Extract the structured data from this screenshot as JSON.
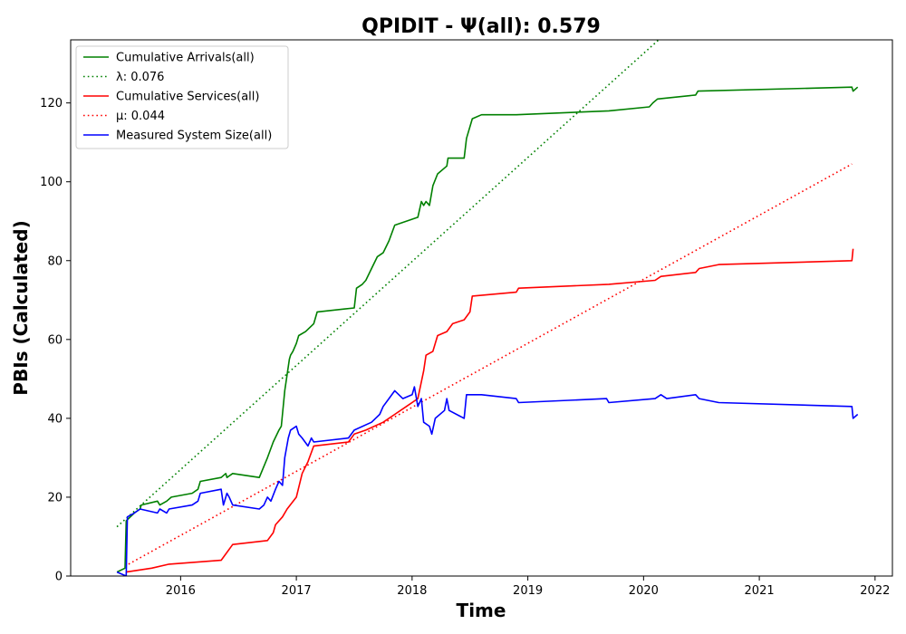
{
  "chart_data": {
    "type": "line",
    "title": "QPIDIT -  Ψ(all): 0.579",
    "xlabel": "Time",
    "ylabel": "PBIs (Calculated)",
    "xlim": [
      2015.05,
      2022.15
    ],
    "ylim": [
      0,
      136
    ],
    "x_ticks": [
      2016,
      2017,
      2018,
      2019,
      2020,
      2021,
      2022
    ],
    "x_tick_labels": [
      "2016",
      "2017",
      "2018",
      "2019",
      "2020",
      "2021",
      "2022"
    ],
    "y_ticks": [
      0,
      20,
      40,
      60,
      80,
      100,
      120
    ],
    "y_tick_labels": [
      "0",
      "20",
      "40",
      "60",
      "80",
      "100",
      "120"
    ],
    "grid": false,
    "legend_position": "top-left",
    "series": [
      {
        "name": "Cumulative Arrivals(all)",
        "color": "#008000",
        "style": "solid",
        "points": [
          [
            2015.45,
            1
          ],
          [
            2015.52,
            2
          ],
          [
            2015.53,
            14
          ],
          [
            2015.6,
            16
          ],
          [
            2015.65,
            17
          ],
          [
            2015.66,
            18
          ],
          [
            2015.8,
            19
          ],
          [
            2015.82,
            18
          ],
          [
            2015.88,
            19
          ],
          [
            2015.92,
            20
          ],
          [
            2016.1,
            21
          ],
          [
            2016.15,
            22
          ],
          [
            2016.17,
            24
          ],
          [
            2016.35,
            25
          ],
          [
            2016.39,
            26
          ],
          [
            2016.4,
            25
          ],
          [
            2016.45,
            26
          ],
          [
            2016.68,
            25
          ],
          [
            2016.75,
            30
          ],
          [
            2016.8,
            34
          ],
          [
            2016.85,
            37
          ],
          [
            2016.87,
            38
          ],
          [
            2016.9,
            47
          ],
          [
            2016.94,
            55
          ],
          [
            2016.95,
            56
          ],
          [
            2016.97,
            57
          ],
          [
            2017.0,
            59
          ],
          [
            2017.02,
            61
          ],
          [
            2017.08,
            62
          ],
          [
            2017.15,
            64
          ],
          [
            2017.18,
            67
          ],
          [
            2017.5,
            68
          ],
          [
            2017.52,
            73
          ],
          [
            2017.57,
            74
          ],
          [
            2017.6,
            75
          ],
          [
            2017.65,
            78
          ],
          [
            2017.7,
            81
          ],
          [
            2017.75,
            82
          ],
          [
            2017.8,
            85
          ],
          [
            2017.85,
            89
          ],
          [
            2018.05,
            91
          ],
          [
            2018.08,
            95
          ],
          [
            2018.1,
            94
          ],
          [
            2018.12,
            95
          ],
          [
            2018.15,
            94
          ],
          [
            2018.18,
            99
          ],
          [
            2018.22,
            102
          ],
          [
            2018.3,
            104
          ],
          [
            2018.31,
            106
          ],
          [
            2018.45,
            106
          ],
          [
            2018.47,
            111
          ],
          [
            2018.52,
            116
          ],
          [
            2018.6,
            117
          ],
          [
            2018.9,
            117
          ],
          [
            2019.7,
            118
          ],
          [
            2020.05,
            119
          ],
          [
            2020.08,
            120
          ],
          [
            2020.12,
            121
          ],
          [
            2020.45,
            122
          ],
          [
            2020.47,
            123
          ],
          [
            2021.8,
            124
          ],
          [
            2021.81,
            123
          ],
          [
            2021.85,
            124
          ]
        ]
      },
      {
        "name": "λ: 0.076",
        "color": "#008000",
        "style": "dotted",
        "points": [
          [
            2015.45,
            12.5
          ],
          [
            2020.13,
            136
          ]
        ]
      },
      {
        "name": "Cumulative Services(all)",
        "color": "#ff0000",
        "style": "solid",
        "points": [
          [
            2015.53,
            1
          ],
          [
            2015.75,
            2
          ],
          [
            2015.9,
            3
          ],
          [
            2016.35,
            4
          ],
          [
            2016.4,
            6
          ],
          [
            2016.45,
            8
          ],
          [
            2016.75,
            9
          ],
          [
            2016.8,
            11
          ],
          [
            2016.82,
            13
          ],
          [
            2016.88,
            15
          ],
          [
            2016.92,
            17
          ],
          [
            2017.0,
            20
          ],
          [
            2017.05,
            26
          ],
          [
            2017.1,
            29
          ],
          [
            2017.15,
            33
          ],
          [
            2017.45,
            34
          ],
          [
            2017.5,
            36
          ],
          [
            2017.6,
            37
          ],
          [
            2017.75,
            39
          ],
          [
            2017.85,
            41
          ],
          [
            2017.95,
            43
          ],
          [
            2018.05,
            45
          ],
          [
            2018.1,
            52
          ],
          [
            2018.12,
            56
          ],
          [
            2018.18,
            57
          ],
          [
            2018.22,
            61
          ],
          [
            2018.3,
            62
          ],
          [
            2018.35,
            64
          ],
          [
            2018.45,
            65
          ],
          [
            2018.5,
            67
          ],
          [
            2018.52,
            71
          ],
          [
            2018.9,
            72
          ],
          [
            2018.92,
            73
          ],
          [
            2019.7,
            74
          ],
          [
            2020.1,
            75
          ],
          [
            2020.15,
            76
          ],
          [
            2020.45,
            77
          ],
          [
            2020.48,
            78
          ],
          [
            2020.65,
            79
          ],
          [
            2021.8,
            80
          ],
          [
            2021.81,
            83
          ]
        ]
      },
      {
        "name": "μ: 0.044",
        "color": "#ff0000",
        "style": "dotted",
        "points": [
          [
            2015.55,
            3
          ],
          [
            2021.8,
            104.5
          ]
        ]
      },
      {
        "name": "Measured System Size(all)",
        "color": "#0000ff",
        "style": "solid",
        "points": [
          [
            2015.45,
            1
          ],
          [
            2015.53,
            0
          ],
          [
            2015.54,
            15
          ],
          [
            2015.6,
            16
          ],
          [
            2015.65,
            17
          ],
          [
            2015.8,
            16
          ],
          [
            2015.82,
            17
          ],
          [
            2015.88,
            16
          ],
          [
            2015.9,
            17
          ],
          [
            2016.1,
            18
          ],
          [
            2016.15,
            19
          ],
          [
            2016.17,
            21
          ],
          [
            2016.35,
            22
          ],
          [
            2016.37,
            18
          ],
          [
            2016.4,
            21
          ],
          [
            2016.42,
            20
          ],
          [
            2016.45,
            18
          ],
          [
            2016.68,
            17
          ],
          [
            2016.72,
            18
          ],
          [
            2016.75,
            20
          ],
          [
            2016.78,
            19
          ],
          [
            2016.82,
            22
          ],
          [
            2016.85,
            24
          ],
          [
            2016.88,
            23
          ],
          [
            2016.9,
            30
          ],
          [
            2016.93,
            35
          ],
          [
            2016.95,
            37
          ],
          [
            2017.0,
            38
          ],
          [
            2017.02,
            36
          ],
          [
            2017.05,
            35
          ],
          [
            2017.1,
            33
          ],
          [
            2017.13,
            35
          ],
          [
            2017.15,
            34
          ],
          [
            2017.45,
            35
          ],
          [
            2017.5,
            37
          ],
          [
            2017.65,
            39
          ],
          [
            2017.72,
            41
          ],
          [
            2017.75,
            43
          ],
          [
            2017.8,
            45
          ],
          [
            2017.85,
            47
          ],
          [
            2017.92,
            45
          ],
          [
            2018.0,
            46
          ],
          [
            2018.02,
            48
          ],
          [
            2018.05,
            43
          ],
          [
            2018.08,
            45
          ],
          [
            2018.1,
            39
          ],
          [
            2018.15,
            38
          ],
          [
            2018.17,
            36
          ],
          [
            2018.2,
            40
          ],
          [
            2018.28,
            42
          ],
          [
            2018.3,
            45
          ],
          [
            2018.32,
            42
          ],
          [
            2018.45,
            40
          ],
          [
            2018.47,
            46
          ],
          [
            2018.55,
            46
          ],
          [
            2018.6,
            46
          ],
          [
            2018.9,
            45
          ],
          [
            2018.92,
            44
          ],
          [
            2019.68,
            45
          ],
          [
            2019.7,
            44
          ],
          [
            2020.1,
            45
          ],
          [
            2020.15,
            46
          ],
          [
            2020.2,
            45
          ],
          [
            2020.45,
            46
          ],
          [
            2020.48,
            45
          ],
          [
            2020.65,
            44
          ],
          [
            2021.8,
            43
          ],
          [
            2021.81,
            40
          ],
          [
            2021.85,
            41
          ]
        ]
      }
    ]
  }
}
